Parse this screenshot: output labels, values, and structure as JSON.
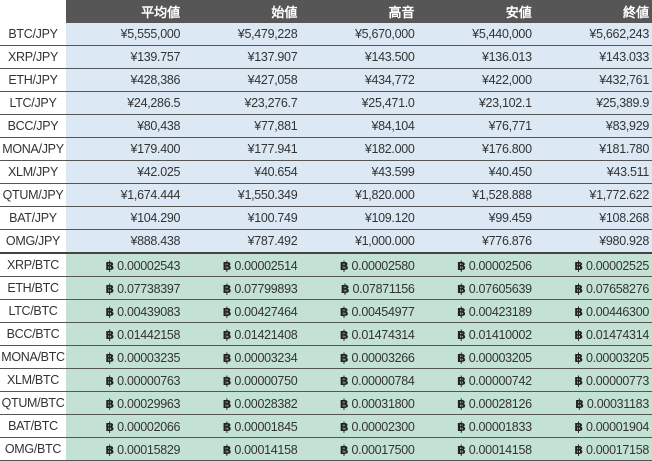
{
  "table": {
    "headers": [
      "平均値",
      "始値",
      "高音",
      "安値",
      "終値"
    ],
    "jpy_symbol": "¥",
    "btc_symbol": "฿",
    "jpy_rows": [
      {
        "pair": "BTC/JPY",
        "values": [
          "5,555,000",
          "5,479,228",
          "5,670,000",
          "5,440,000",
          "5,662,243"
        ]
      },
      {
        "pair": "XRP/JPY",
        "values": [
          "139.757",
          "137.907",
          "143.500",
          "136.013",
          "143.033"
        ]
      },
      {
        "pair": "ETH/JPY",
        "values": [
          "428,386",
          "427,058",
          "434,772",
          "422,000",
          "432,761"
        ]
      },
      {
        "pair": "LTC/JPY",
        "values": [
          "24,286.5",
          "23,276.7",
          "25,471.0",
          "23,102.1",
          "25,389.9"
        ]
      },
      {
        "pair": "BCC/JPY",
        "values": [
          "80,438",
          "77,881",
          "84,104",
          "76,771",
          "83,929"
        ]
      },
      {
        "pair": "MONA/JPY",
        "values": [
          "179.400",
          "177.941",
          "182.000",
          "176.800",
          "181.780"
        ]
      },
      {
        "pair": "XLM/JPY",
        "values": [
          "42.025",
          "40.654",
          "43.599",
          "40.450",
          "43.511"
        ]
      },
      {
        "pair": "QTUM/JPY",
        "values": [
          "1,674.444",
          "1,550.349",
          "1,820.000",
          "1,528.888",
          "1,772.622"
        ]
      },
      {
        "pair": "BAT/JPY",
        "values": [
          "104.290",
          "100.749",
          "109.120",
          "99.459",
          "108.268"
        ]
      },
      {
        "pair": "OMG/JPY",
        "values": [
          "888.438",
          "787.492",
          "1,000.000",
          "776.876",
          "980.928"
        ]
      }
    ],
    "btc_rows": [
      {
        "pair": "XRP/BTC",
        "values": [
          "0.00002543",
          "0.00002514",
          "0.00002580",
          "0.00002506",
          "0.00002525"
        ]
      },
      {
        "pair": "ETH/BTC",
        "values": [
          "0.07738397",
          "0.07799893",
          "0.07871156",
          "0.07605639",
          "0.07658276"
        ]
      },
      {
        "pair": "LTC/BTC",
        "values": [
          "0.00439083",
          "0.00427464",
          "0.00454977",
          "0.00423189",
          "0.00446300"
        ]
      },
      {
        "pair": "BCC/BTC",
        "values": [
          "0.01442158",
          "0.01421408",
          "0.01474314",
          "0.01410002",
          "0.01474314"
        ]
      },
      {
        "pair": "MONA/BTC",
        "values": [
          "0.00003235",
          "0.00003234",
          "0.00003266",
          "0.00003205",
          "0.00003205"
        ]
      },
      {
        "pair": "XLM/BTC",
        "values": [
          "0.00000763",
          "0.00000750",
          "0.00000784",
          "0.00000742",
          "0.00000773"
        ]
      },
      {
        "pair": "QTUM/BTC",
        "values": [
          "0.00029963",
          "0.00028382",
          "0.00031800",
          "0.00028126",
          "0.00031183"
        ]
      },
      {
        "pair": "BAT/BTC",
        "values": [
          "0.00002066",
          "0.00001845",
          "0.00002300",
          "0.00001833",
          "0.00001904"
        ]
      },
      {
        "pair": "OMG/BTC",
        "values": [
          "0.00015829",
          "0.00014158",
          "0.00017500",
          "0.00014158",
          "0.00017158"
        ]
      }
    ],
    "colors": {
      "header": "#565656",
      "jpy_bg": "#dce9f5",
      "btc_bg": "#c4e2d3"
    }
  }
}
